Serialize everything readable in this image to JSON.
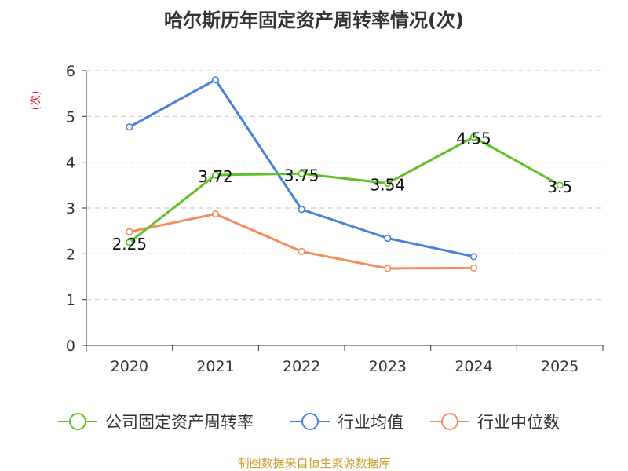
{
  "chart_data": {
    "type": "line",
    "title": "哈尔斯历年固定资产周转率情况(次)",
    "ylabel": "(次)",
    "xlabel": "",
    "ylim": [
      0,
      6
    ],
    "yticks": [
      0,
      1,
      2,
      3,
      4,
      5,
      6
    ],
    "categories": [
      "2020",
      "2021",
      "2022",
      "2023",
      "2024",
      "2025"
    ],
    "grid": true,
    "legend_position": "bottom",
    "series": [
      {
        "name": "公司固定资产周转率",
        "color": "#5ec224",
        "values": [
          2.25,
          3.72,
          3.75,
          3.54,
          4.55,
          3.5
        ],
        "labels": [
          "2.25",
          "3.72",
          "3.75",
          "3.54",
          "4.55",
          "3.5"
        ]
      },
      {
        "name": "行业均值",
        "color": "#4a7fdc",
        "values": [
          4.77,
          5.8,
          2.97,
          2.34,
          1.94,
          null
        ]
      },
      {
        "name": "行业中位数",
        "color": "#f58c5b",
        "values": [
          2.48,
          2.87,
          2.05,
          1.68,
          1.69,
          null
        ]
      }
    ]
  },
  "footer": {
    "source": "制图数据来自恒生聚源数据库"
  }
}
